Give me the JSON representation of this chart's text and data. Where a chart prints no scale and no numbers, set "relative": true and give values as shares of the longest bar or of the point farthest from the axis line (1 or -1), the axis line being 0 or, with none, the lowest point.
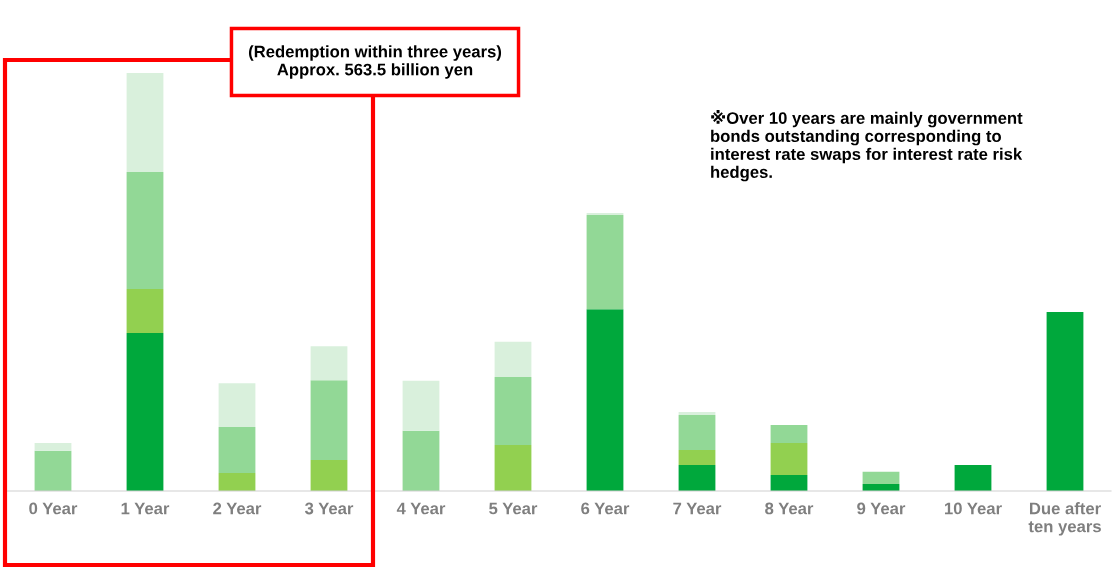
{
  "chart_data": {
    "type": "bar",
    "stacked": true,
    "relative": true,
    "categories": [
      "0 Year",
      "1 Year",
      "2 Year",
      "3 Year",
      "4 Year",
      "5 Year",
      "6 Year",
      "7 Year",
      "8 Year",
      "9 Year",
      "10 Year",
      "Due after\nten years"
    ],
    "series": [
      {
        "color": "#00a83c",
        "values": [
          0,
          0.378,
          0,
          0,
          0,
          0,
          0.435,
          0.062,
          0.038,
          0.017,
          0.062,
          0.428
        ]
      },
      {
        "color": "#92d050",
        "values": [
          0,
          0.105,
          0.043,
          0.074,
          0,
          0.11,
          0,
          0.036,
          0.077,
          0,
          0,
          0
        ]
      },
      {
        "color": "#92d896",
        "values": [
          0.096,
          0.28,
          0.11,
          0.191,
          0.144,
          0.163,
          0.225,
          0.084,
          0.043,
          0.029,
          0,
          0
        ]
      },
      {
        "color": "#d9f0dc",
        "values": [
          0.019,
          0.237,
          0.105,
          0.081,
          0.12,
          0.084,
          0.005,
          0.007,
          0,
          0,
          0,
          0
        ]
      }
    ],
    "annotations": [
      "(Redemption within three years)\nApprox. 563.5 billion yen",
      "※Over 10 years are mainly government\nbonds outstanding corresponding to\ninterest rate swaps for interest rate risk\nhedges."
    ],
    "grid": false,
    "legend": false
  }
}
